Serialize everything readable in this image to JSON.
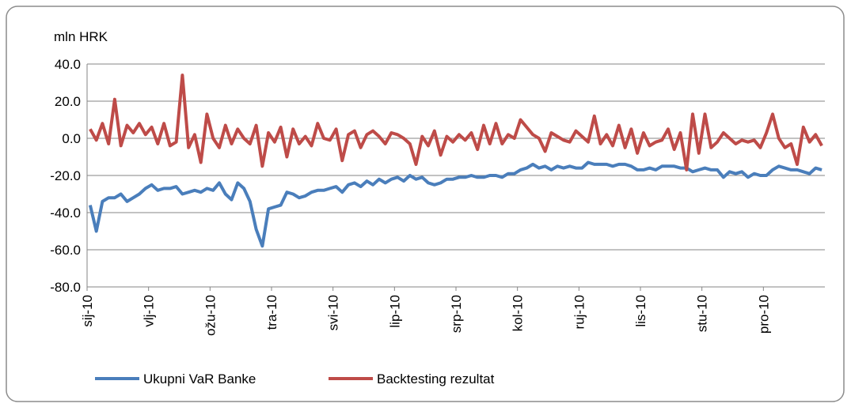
{
  "chart_data": {
    "type": "line",
    "y_axis_label": "mln HRK",
    "categories": [
      "sij-10",
      null,
      null,
      null,
      null,
      null,
      null,
      null,
      null,
      null,
      "vlj-10",
      null,
      null,
      null,
      null,
      null,
      null,
      null,
      null,
      null,
      "ožu-10",
      null,
      null,
      null,
      null,
      null,
      null,
      null,
      null,
      null,
      "tra-10",
      null,
      null,
      null,
      null,
      null,
      null,
      null,
      null,
      null,
      "svi-10",
      null,
      null,
      null,
      null,
      null,
      null,
      null,
      null,
      null,
      "lip-10",
      null,
      null,
      null,
      null,
      null,
      null,
      null,
      null,
      null,
      "srp-10",
      null,
      null,
      null,
      null,
      null,
      null,
      null,
      null,
      null,
      "kol-10",
      null,
      null,
      null,
      null,
      null,
      null,
      null,
      null,
      null,
      "ruj-10",
      null,
      null,
      null,
      null,
      null,
      null,
      null,
      null,
      null,
      "lis-10",
      null,
      null,
      null,
      null,
      null,
      null,
      null,
      null,
      null,
      "stu-10",
      null,
      null,
      null,
      null,
      null,
      null,
      null,
      null,
      null,
      "pro-10",
      null,
      null,
      null,
      null,
      null,
      null,
      null,
      null,
      null
    ],
    "series": [
      {
        "name": "Ukupni VaR Banke",
        "color": "#4a7ebb",
        "values": [
          -36,
          -50,
          -34,
          -32,
          -32,
          -30,
          -34,
          -32,
          -30,
          -27,
          -25,
          -28,
          -27,
          -27,
          -26,
          -30,
          -29,
          -28,
          -29,
          -27,
          -28,
          -24,
          -30,
          -33,
          -24,
          -27,
          -34,
          -49,
          -58,
          -38,
          -37,
          -36,
          -29,
          -30,
          -32,
          -31,
          -29,
          -28,
          -28,
          -27,
          -26,
          -29,
          -25,
          -24,
          -26,
          -23,
          -25,
          -22,
          -24,
          -22,
          -21,
          -23,
          -20,
          -22,
          -21,
          -24,
          -25,
          -24,
          -22,
          -22,
          -21,
          -21,
          -20,
          -21,
          -21,
          -20,
          -20,
          -21,
          -19,
          -19,
          -17,
          -16,
          -14,
          -16,
          -15,
          -17,
          -15,
          -16,
          -15,
          -16,
          -16,
          -13,
          -14,
          -14,
          -14,
          -15,
          -14,
          -14,
          -15,
          -17,
          -17,
          -16,
          -17,
          -15,
          -15,
          -15,
          -16,
          -16,
          -18,
          -17,
          -16,
          -17,
          -17,
          -21,
          -18,
          -19,
          -18,
          -21,
          -19,
          -20,
          -20,
          -17,
          -15,
          -16,
          -17,
          -17,
          -18,
          -19,
          -16,
          -17
        ]
      },
      {
        "name": "Backtesting rezultat",
        "color": "#be4b48",
        "values": [
          5,
          -1,
          8,
          -3,
          21,
          -4,
          7,
          3,
          8,
          2,
          6,
          -3,
          8,
          -4,
          -2,
          34,
          -5,
          2,
          -13,
          13,
          0,
          -5,
          7,
          -3,
          5,
          0,
          -3,
          7,
          -15,
          3,
          -2,
          6,
          -10,
          5,
          -3,
          1,
          -4,
          8,
          0,
          -1,
          5,
          -12,
          2,
          4,
          -5,
          2,
          4,
          1,
          -3,
          3,
          2,
          0,
          -3,
          -14,
          1,
          -4,
          4,
          -9,
          1,
          -2,
          2,
          -1,
          3,
          -6,
          7,
          -3,
          8,
          -3,
          2,
          0,
          10,
          6,
          2,
          0,
          -7,
          3,
          1,
          -1,
          -2,
          4,
          1,
          -2,
          12,
          -3,
          2,
          -4,
          7,
          -5,
          5,
          -8,
          3,
          -4,
          -2,
          -1,
          5,
          -6,
          3,
          -17,
          13,
          -8,
          13,
          -5,
          -2,
          3,
          0,
          -3,
          -1,
          -2,
          -1,
          -5,
          3,
          13,
          0,
          -5,
          -3,
          -14,
          6,
          -2,
          2,
          -4
        ]
      }
    ],
    "ylim": [
      -80,
      40
    ],
    "yticks": [
      {
        "value": -80,
        "label": "-80.0"
      },
      {
        "value": -60,
        "label": "-60.0"
      },
      {
        "value": -40,
        "label": "-40.0"
      },
      {
        "value": -20,
        "label": "-20.0"
      },
      {
        "value": 0,
        "label": "0.0"
      },
      {
        "value": 20,
        "label": "20.0"
      },
      {
        "value": 40,
        "label": "40.0"
      }
    ],
    "grid": true,
    "legend": "bottom"
  }
}
